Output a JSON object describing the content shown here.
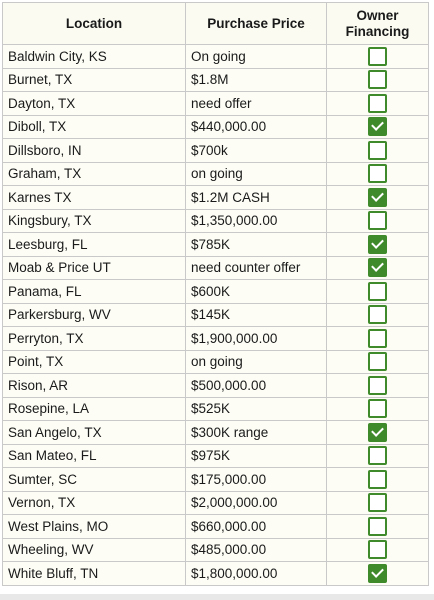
{
  "headers": {
    "location": "Location",
    "price": "Purchase Price",
    "owner_line1": "Owner",
    "owner_line2": "Financing"
  },
  "rows": [
    {
      "location": "Baldwin City, KS",
      "price": "On going",
      "owner": false
    },
    {
      "location": "Burnet, TX",
      "price": "$1.8M",
      "owner": false
    },
    {
      "location": "Dayton, TX",
      "price": "need offer",
      "owner": false
    },
    {
      "location": "Diboll, TX",
      "price": "$440,000.00",
      "owner": true
    },
    {
      "location": "Dillsboro, IN",
      "price": "$700k",
      "owner": false
    },
    {
      "location": "Graham, TX",
      "price": "on going",
      "owner": false
    },
    {
      "location": "Karnes TX",
      "price": "$1.2M CASH",
      "owner": true
    },
    {
      "location": "Kingsbury, TX",
      "price": "$1,350,000.00",
      "owner": false
    },
    {
      "location": "Leesburg, FL",
      "price": "$785K",
      "owner": true
    },
    {
      "location": "Moab & Price UT",
      "price": "need counter offer",
      "owner": true
    },
    {
      "location": "Panama, FL",
      "price": "$600K",
      "owner": false
    },
    {
      "location": "Parkersburg, WV",
      "price": "$145K",
      "owner": false
    },
    {
      "location": "Perryton, TX",
      "price": "$1,900,000.00",
      "owner": false
    },
    {
      "location": "Point, TX",
      "price": "on going",
      "owner": false
    },
    {
      "location": "Rison, AR",
      "price": "$500,000.00",
      "owner": false
    },
    {
      "location": "Rosepine, LA",
      "price": "$525K",
      "owner": false
    },
    {
      "location": "San Angelo, TX",
      "price": "$300K range",
      "owner": true
    },
    {
      "location": "San Mateo, FL",
      "price": "$975K",
      "owner": false
    },
    {
      "location": "Sumter, SC",
      "price": "$175,000.00",
      "owner": false
    },
    {
      "location": "Vernon, TX",
      "price": "$2,000,000.00",
      "owner": false
    },
    {
      "location": "West Plains, MO",
      "price": "$660,000.00",
      "owner": false
    },
    {
      "location": "Wheeling, WV",
      "price": "$485,000.00",
      "owner": false
    },
    {
      "location": "White Bluff, TN",
      "price": "$1,800,000.00",
      "owner": true
    }
  ]
}
